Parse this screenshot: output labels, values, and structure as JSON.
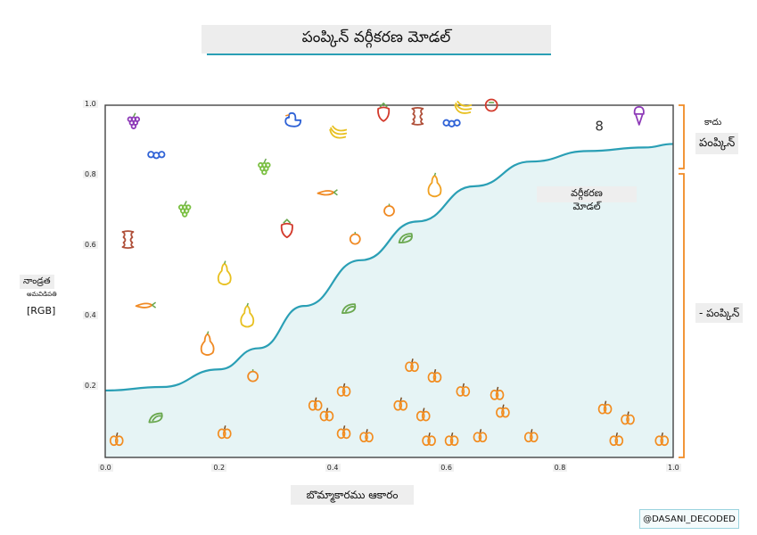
{
  "title": "పంప్కిన్ వర్గీకరణ మోడల్",
  "x_axis_label": "బొమ్మాకారము ఆకారం",
  "y_axis_label": [
    "నాండ్రత",
    "అమవిడిపతి",
    "[RGB]"
  ],
  "curve_label": [
    "వర్గీకరణ",
    "మోడల్"
  ],
  "right_labels": {
    "top_small": "కాదు",
    "top": "పంప్కిన్",
    "bottom": "- పంప్కిన్"
  },
  "credit": "@DASANI_DECODED",
  "colors": {
    "curve": "#2a9fb5",
    "fill": "#e6f4f5",
    "bracket": "#f08a24",
    "pumpkin": "#f28c1f",
    "frame": "#444444"
  },
  "chart_data": {
    "type": "scatter",
    "x_ticks": [
      "0.0",
      "0.2",
      "0.4",
      "0.6",
      "0.8",
      "1.0"
    ],
    "y_ticks": [
      "0.2",
      "0.4",
      "0.6",
      "0.8",
      "1.0"
    ],
    "xlim": [
      0,
      1
    ],
    "ylim": [
      0,
      1
    ],
    "curve": [
      [
        0,
        0.19
      ],
      [
        0.1,
        0.2
      ],
      [
        0.2,
        0.25
      ],
      [
        0.27,
        0.31
      ],
      [
        0.35,
        0.43
      ],
      [
        0.45,
        0.56
      ],
      [
        0.55,
        0.67
      ],
      [
        0.65,
        0.77
      ],
      [
        0.75,
        0.84
      ],
      [
        0.85,
        0.87
      ],
      [
        0.95,
        0.88
      ],
      [
        1.0,
        0.89
      ]
    ],
    "not_pumpkin": [
      {
        "x": 0.05,
        "y": 0.95,
        "icon": "grapes-icon",
        "color": "#8e3bb8"
      },
      {
        "x": 0.09,
        "y": 0.86,
        "icon": "blueberries-icon",
        "color": "#2f62d6"
      },
      {
        "x": 0.33,
        "y": 0.96,
        "icon": "duck-icon",
        "color": "#2f62d6"
      },
      {
        "x": 0.41,
        "y": 0.92,
        "icon": "banana-icon",
        "color": "#e8c020"
      },
      {
        "x": 0.49,
        "y": 0.98,
        "icon": "strawberry-icon",
        "color": "#d33a2c"
      },
      {
        "x": 0.55,
        "y": 0.97,
        "icon": "apple-core-icon",
        "color": "#b0503a"
      },
      {
        "x": 0.61,
        "y": 0.95,
        "icon": "blueberries-icon",
        "color": "#2f62d6"
      },
      {
        "x": 0.63,
        "y": 0.99,
        "icon": "banana-icon",
        "color": "#e8c020"
      },
      {
        "x": 0.68,
        "y": 1.0,
        "icon": "tomato-icon",
        "color": "#d33a2c"
      },
      {
        "x": 0.87,
        "y": 0.94,
        "icon": "number-icon",
        "color": "#333333"
      },
      {
        "x": 0.94,
        "y": 0.97,
        "icon": "ice-cream-icon",
        "color": "#8e3bb8"
      },
      {
        "x": 0.28,
        "y": 0.82,
        "icon": "grapes-icon",
        "color": "#7bc043"
      },
      {
        "x": 0.39,
        "y": 0.75,
        "icon": "carrot-icon",
        "color": "#f08a24"
      },
      {
        "x": 0.58,
        "y": 0.77,
        "icon": "pear-icon",
        "color": "#f0a020"
      },
      {
        "x": 0.14,
        "y": 0.7,
        "icon": "grapes-icon",
        "color": "#7bc043"
      },
      {
        "x": 0.32,
        "y": 0.65,
        "icon": "strawberry-icon",
        "color": "#d33a2c"
      },
      {
        "x": 0.5,
        "y": 0.7,
        "icon": "orange-icon",
        "color": "#f08a24"
      },
      {
        "x": 0.04,
        "y": 0.62,
        "icon": "apple-core-icon",
        "color": "#b0503a"
      },
      {
        "x": 0.44,
        "y": 0.62,
        "icon": "orange-icon",
        "color": "#f08a24"
      },
      {
        "x": 0.53,
        "y": 0.62,
        "icon": "avocado-icon",
        "color": "#6aa84f"
      },
      {
        "x": 0.21,
        "y": 0.52,
        "icon": "pear-icon",
        "color": "#e8c020"
      },
      {
        "x": 0.07,
        "y": 0.43,
        "icon": "carrot-icon",
        "color": "#f08a24"
      },
      {
        "x": 0.43,
        "y": 0.42,
        "icon": "avocado-icon",
        "color": "#6aa84f"
      },
      {
        "x": 0.25,
        "y": 0.4,
        "icon": "pear-icon",
        "color": "#e8c020"
      },
      {
        "x": 0.18,
        "y": 0.32,
        "icon": "pear-icon",
        "color": "#f08a24"
      },
      {
        "x": 0.26,
        "y": 0.23,
        "icon": "orange-icon",
        "color": "#f08a24"
      },
      {
        "x": 0.09,
        "y": 0.11,
        "icon": "avocado-icon",
        "color": "#6aa84f"
      }
    ],
    "pumpkin": [
      {
        "x": 0.54,
        "y": 0.26
      },
      {
        "x": 0.58,
        "y": 0.23
      },
      {
        "x": 0.63,
        "y": 0.19
      },
      {
        "x": 0.69,
        "y": 0.18
      },
      {
        "x": 0.42,
        "y": 0.19
      },
      {
        "x": 0.52,
        "y": 0.15
      },
      {
        "x": 0.56,
        "y": 0.12
      },
      {
        "x": 0.7,
        "y": 0.13
      },
      {
        "x": 0.37,
        "y": 0.15
      },
      {
        "x": 0.39,
        "y": 0.12
      },
      {
        "x": 0.88,
        "y": 0.14
      },
      {
        "x": 0.92,
        "y": 0.11
      },
      {
        "x": 0.02,
        "y": 0.05
      },
      {
        "x": 0.21,
        "y": 0.07
      },
      {
        "x": 0.42,
        "y": 0.07
      },
      {
        "x": 0.46,
        "y": 0.06
      },
      {
        "x": 0.57,
        "y": 0.05
      },
      {
        "x": 0.61,
        "y": 0.05
      },
      {
        "x": 0.66,
        "y": 0.06
      },
      {
        "x": 0.75,
        "y": 0.06
      },
      {
        "x": 0.9,
        "y": 0.05
      },
      {
        "x": 0.98,
        "y": 0.05
      }
    ]
  }
}
